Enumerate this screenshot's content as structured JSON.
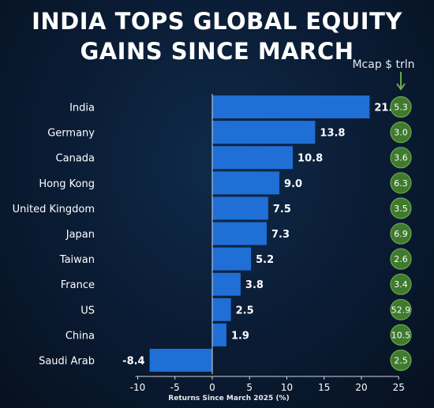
{
  "title_lines": [
    "INDIA TOPS GLOBAL EQUITY",
    "GAINS SINCE MARCH"
  ],
  "mcap_header": "Mcap $ trln",
  "colors": {
    "bar": "#1f6fd6",
    "mcap_circle": "#3f7a2f",
    "mcap_border": "#6aa84f",
    "axis": "#d0d6de",
    "label": "#ffffff"
  },
  "chart_data": {
    "type": "bar",
    "orientation": "horizontal",
    "title": "INDIA TOPS GLOBAL EQUITY GAINS SINCE MARCH",
    "xlabel": "Returns Since March 2025 (%)",
    "ylabel": "",
    "xlim": [
      -10,
      25
    ],
    "xticks": [
      -10,
      -5,
      0,
      5,
      10,
      15,
      20,
      25
    ],
    "categories": [
      "India",
      "Germany",
      "Canada",
      "Hong Kong",
      "United Kingdom",
      "Japan",
      "Taiwan",
      "France",
      "US",
      "China",
      "Saudi Arab"
    ],
    "values": [
      21.1,
      13.8,
      10.8,
      9.0,
      7.5,
      7.3,
      5.2,
      3.8,
      2.5,
      1.9,
      -8.4
    ],
    "value_labels": [
      "21.1",
      "13.8",
      "10.8",
      "9.0",
      "7.5",
      "7.3",
      "5.2",
      "3.8",
      "2.5",
      "1.9",
      "-8.4"
    ],
    "mcap_values": [
      "5.3",
      "3.0",
      "3.6",
      "6.3",
      "3.5",
      "6.9",
      "2.6",
      "3.4",
      "52.9",
      "10.5",
      "2.5"
    ]
  }
}
